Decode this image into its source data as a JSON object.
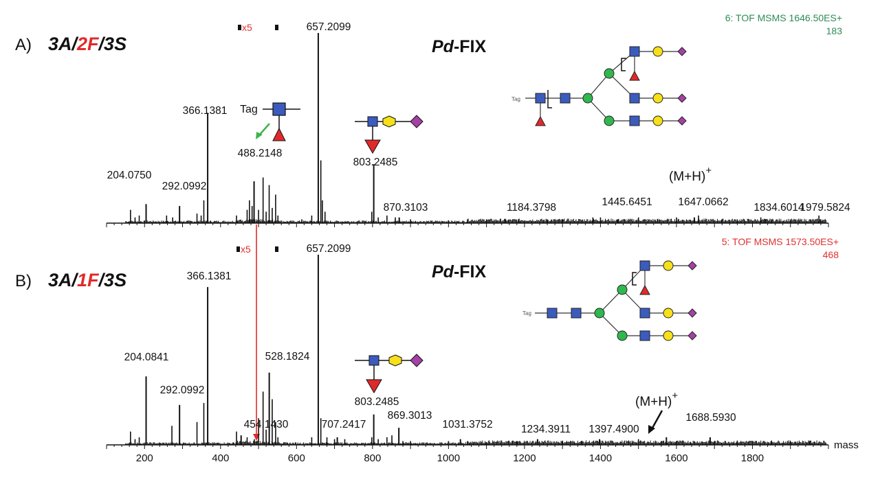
{
  "colors": {
    "green_header": "#2e8b57",
    "red_header": "#e03030",
    "hexnac": "#3b5bbd",
    "hexose": "#2fb84f",
    "galactose": "#f6e01a",
    "sialic": "#a640a6",
    "fucose": "#e02a2a",
    "green_arrow": "#3cb44b",
    "red_arrow": "#e02a2a"
  },
  "chart_data": [
    {
      "type": "bar",
      "panel": "A)",
      "title_parts": [
        "3A/",
        "2F",
        "/3S"
      ],
      "sample_italic": "Pd",
      "sample_rest": "-FIX",
      "header_line1": "6: TOF MSMS 1646.50ES+",
      "header_line2": "183",
      "zoom_label": "x5",
      "xlim": [
        100,
        2000
      ],
      "ylim": [
        0,
        100
      ],
      "ion_label": "(M+H)",
      "ion_sup": "+",
      "tag_label": "Tag",
      "mini_tag_label": "Tag",
      "labeled_peaks": [
        {
          "mz": 204.075,
          "label": "204.0750",
          "intensity": 10
        },
        {
          "mz": 292.0992,
          "label": "292.0992",
          "intensity": 9
        },
        {
          "mz": 366.1381,
          "label": "366.1381",
          "intensity": 58
        },
        {
          "mz": 488.2148,
          "label": "488.2148",
          "intensity": 22
        },
        {
          "mz": 657.2099,
          "label": "657.2099",
          "intensity": 100
        },
        {
          "mz": 803.2485,
          "label": "803.2485",
          "intensity": 31
        },
        {
          "mz": 870.3103,
          "label": "870.3103",
          "intensity": 3
        },
        {
          "mz": 1184.3798,
          "label": "1184.3798",
          "intensity": 2
        },
        {
          "mz": 1445.6451,
          "label": "1445.6451",
          "intensity": 2
        },
        {
          "mz": 1647.0662,
          "label": "1647.0662",
          "intensity": 3
        },
        {
          "mz": 1834.6014,
          "label": "1834.6014",
          "intensity": 2
        },
        {
          "mz": 1979.5824,
          "label": "1979.5824",
          "intensity": 2
        }
      ],
      "minor_peaks": [
        [
          163,
          7
        ],
        [
          175,
          3
        ],
        [
          186,
          4
        ],
        [
          258,
          4
        ],
        [
          274,
          3
        ],
        [
          338,
          5
        ],
        [
          349,
          4
        ],
        [
          356,
          12
        ],
        [
          442,
          4
        ],
        [
          470,
          7
        ],
        [
          476,
          12
        ],
        [
          483,
          9
        ],
        [
          500,
          7
        ],
        [
          512,
          24
        ],
        [
          520,
          6
        ],
        [
          528,
          20
        ],
        [
          536,
          8
        ],
        [
          545,
          15
        ],
        [
          551,
          4
        ],
        [
          614,
          2
        ],
        [
          640,
          4
        ],
        [
          664,
          33
        ],
        [
          668,
          12
        ],
        [
          675,
          6
        ],
        [
          798,
          6
        ],
        [
          815,
          3
        ],
        [
          838,
          4
        ],
        [
          860,
          3
        ],
        [
          900,
          2
        ],
        [
          1000,
          1.5
        ],
        [
          1050,
          2
        ],
        [
          1100,
          2
        ],
        [
          1150,
          2
        ],
        [
          1260,
          2
        ],
        [
          1300,
          2
        ],
        [
          1380,
          3
        ],
        [
          1400,
          3
        ],
        [
          1500,
          3
        ],
        [
          1550,
          2
        ],
        [
          1600,
          3
        ],
        [
          1658,
          4
        ],
        [
          1720,
          2
        ],
        [
          1760,
          2
        ],
        [
          1822,
          3
        ],
        [
          1850,
          2
        ],
        [
          1900,
          2
        ],
        [
          1975,
          4
        ]
      ]
    },
    {
      "type": "bar",
      "panel": "B)",
      "title_parts": [
        "3A/",
        "1F",
        "/3S"
      ],
      "sample_italic": "Pd",
      "sample_rest": "-FIX",
      "header_line1": "5: TOF MSMS 1573.50ES+",
      "header_line2": "468",
      "zoom_label": "x5",
      "xlim": [
        100,
        2000
      ],
      "ylim": [
        0,
        100
      ],
      "xlabel": "mass",
      "xticks": [
        200,
        400,
        600,
        800,
        1000,
        1200,
        1400,
        1600,
        1800
      ],
      "ion_label": "(M+H)",
      "ion_sup": "+",
      "mini_tag_label": "Tag",
      "labeled_peaks": [
        {
          "mz": 204.0841,
          "label": "204.0841",
          "intensity": 36
        },
        {
          "mz": 292.0992,
          "label": "292.0992",
          "intensity": 21
        },
        {
          "mz": 366.1381,
          "label": "366.1381",
          "intensity": 83
        },
        {
          "mz": 454.143,
          "label": "454.1430",
          "intensity": 5
        },
        {
          "mz": 528.1824,
          "label": "528.1824",
          "intensity": 38
        },
        {
          "mz": 657.2099,
          "label": "657.2099",
          "intensity": 100
        },
        {
          "mz": 707.2417,
          "label": "707.2417",
          "intensity": 4
        },
        {
          "mz": 803.2485,
          "label": "803.2485",
          "intensity": 16
        },
        {
          "mz": 869.3013,
          "label": "869.3013",
          "intensity": 9
        },
        {
          "mz": 1031.3752,
          "label": "1031.3752",
          "intensity": 3
        },
        {
          "mz": 1234.3911,
          "label": "1234.3911",
          "intensity": 3
        },
        {
          "mz": 1397.49,
          "label": "1397.4900",
          "intensity": 3
        },
        {
          "mz": 1573.5,
          "label": "",
          "intensity": 4
        },
        {
          "mz": 1688.593,
          "label": "1688.5930",
          "intensity": 4
        }
      ],
      "minor_peaks": [
        [
          163,
          7
        ],
        [
          175,
          3
        ],
        [
          186,
          4
        ],
        [
          272,
          10
        ],
        [
          338,
          12
        ],
        [
          356,
          22
        ],
        [
          442,
          7
        ],
        [
          470,
          4
        ],
        [
          489,
          3
        ],
        [
          500,
          14
        ],
        [
          512,
          28
        ],
        [
          520,
          8
        ],
        [
          536,
          24
        ],
        [
          545,
          12
        ],
        [
          551,
          4
        ],
        [
          640,
          4
        ],
        [
          664,
          14
        ],
        [
          680,
          4
        ],
        [
          700,
          3
        ],
        [
          727,
          3
        ],
        [
          798,
          4
        ],
        [
          815,
          3
        ],
        [
          838,
          4
        ],
        [
          851,
          5
        ],
        [
          880,
          2
        ],
        [
          900,
          2
        ],
        [
          1000,
          2
        ],
        [
          1050,
          2
        ],
        [
          1100,
          1.5
        ],
        [
          1180,
          2
        ],
        [
          1300,
          2
        ],
        [
          1350,
          2
        ],
        [
          1500,
          3
        ],
        [
          1560,
          2
        ],
        [
          1600,
          2
        ],
        [
          1700,
          2
        ],
        [
          1760,
          2
        ],
        [
          1850,
          2
        ],
        [
          1900,
          2
        ],
        [
          1950,
          2
        ]
      ]
    }
  ]
}
